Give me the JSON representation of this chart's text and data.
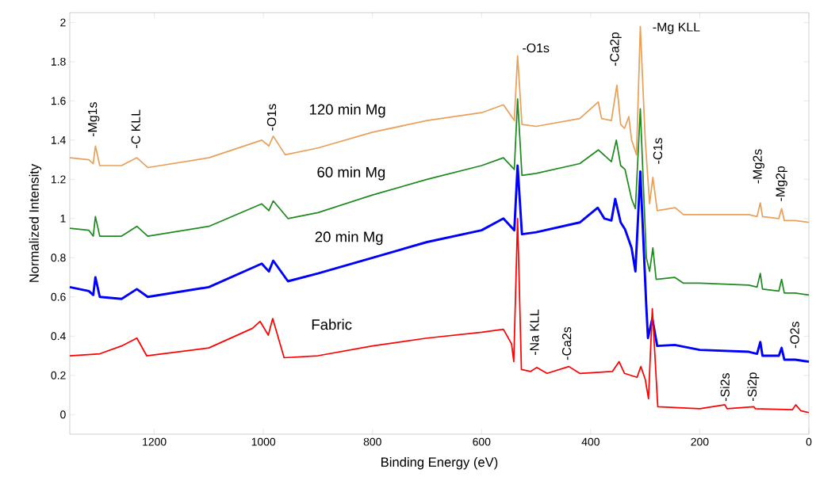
{
  "chart_data": {
    "type": "line",
    "xlabel": "Binding Energy (eV)",
    "ylabel": "Normalized Intensity",
    "xlim": [
      1355,
      0
    ],
    "ylim": [
      -0.1,
      2.05
    ],
    "xticks": [
      1200,
      1000,
      800,
      600,
      400,
      200,
      0
    ],
    "yticks": [
      0,
      0.2,
      0.4,
      0.6,
      0.8,
      1,
      1.2,
      1.4,
      1.6,
      1.8,
      2
    ],
    "grid": false,
    "legend": false,
    "marker": "none",
    "line_style": "solid",
    "series": [
      {
        "name": "120 min Mg",
        "color": "#e8a05a",
        "x": [
          1355,
          1320,
          1312,
          1308,
          1300,
          1260,
          1232,
          1212,
          1100,
          1003,
          990,
          982,
          960,
          900,
          800,
          700,
          600,
          560,
          540,
          534,
          526,
          500,
          420,
          386,
          380,
          362,
          352,
          345,
          338,
          330,
          325,
          316,
          309,
          300,
          292,
          286,
          278,
          245,
          230,
          200,
          110,
          95,
          89,
          85,
          55,
          50,
          45,
          25,
          0
        ],
        "values": [
          1.31,
          1.3,
          1.28,
          1.37,
          1.27,
          1.27,
          1.31,
          1.26,
          1.31,
          1.4,
          1.37,
          1.42,
          1.325,
          1.36,
          1.44,
          1.5,
          1.54,
          1.58,
          1.5,
          1.83,
          1.48,
          1.47,
          1.51,
          1.595,
          1.51,
          1.5,
          1.68,
          1.48,
          1.46,
          1.52,
          1.4,
          1.325,
          1.98,
          1.4,
          1.075,
          1.21,
          1.04,
          1.055,
          1.02,
          1.02,
          1.02,
          1.01,
          1.08,
          1.01,
          1.0,
          1.05,
          0.99,
          0.99,
          0.98
        ]
      },
      {
        "name": "60 min Mg",
        "color": "#1f8a1f",
        "x": [
          1355,
          1320,
          1312,
          1308,
          1300,
          1260,
          1232,
          1212,
          1100,
          1003,
          990,
          982,
          955,
          900,
          800,
          700,
          600,
          560,
          540,
          534,
          526,
          500,
          420,
          386,
          362,
          353,
          345,
          337,
          325,
          318,
          309,
          298,
          292,
          286,
          280,
          246,
          230,
          200,
          110,
          95,
          89,
          85,
          55,
          50,
          45,
          25,
          0
        ],
        "values": [
          0.95,
          0.94,
          0.91,
          1.01,
          0.91,
          0.91,
          0.96,
          0.91,
          0.96,
          1.075,
          1.04,
          1.09,
          1.0,
          1.03,
          1.12,
          1.2,
          1.27,
          1.31,
          1.25,
          1.61,
          1.22,
          1.23,
          1.28,
          1.35,
          1.29,
          1.4,
          1.27,
          1.25,
          1.1,
          1.05,
          1.56,
          0.8,
          0.73,
          0.85,
          0.69,
          0.7,
          0.67,
          0.67,
          0.66,
          0.65,
          0.72,
          0.64,
          0.63,
          0.69,
          0.62,
          0.62,
          0.61
        ]
      },
      {
        "name": "20 min Mg",
        "color": "#0000ff",
        "x": [
          1355,
          1320,
          1312,
          1308,
          1300,
          1260,
          1232,
          1212,
          1100,
          1003,
          990,
          982,
          955,
          900,
          800,
          700,
          600,
          560,
          540,
          534,
          526,
          500,
          420,
          387,
          375,
          362,
          355,
          345,
          337,
          325,
          318,
          309,
          298,
          295,
          287,
          278,
          246,
          200,
          110,
          95,
          89,
          85,
          55,
          50,
          45,
          25,
          0
        ],
        "values": [
          0.65,
          0.63,
          0.61,
          0.7,
          0.6,
          0.59,
          0.64,
          0.6,
          0.65,
          0.77,
          0.73,
          0.785,
          0.68,
          0.72,
          0.8,
          0.88,
          0.94,
          1.0,
          0.94,
          1.27,
          0.92,
          0.93,
          0.98,
          1.055,
          1.0,
          0.99,
          1.1,
          0.98,
          0.945,
          0.85,
          0.73,
          1.24,
          0.55,
          0.39,
          0.49,
          0.35,
          0.355,
          0.33,
          0.32,
          0.31,
          0.37,
          0.3,
          0.3,
          0.34,
          0.28,
          0.28,
          0.27
        ]
      },
      {
        "name": "Fabric",
        "color": "#ff0000",
        "x": [
          1355,
          1300,
          1260,
          1232,
          1214,
          1100,
          1020,
          1006,
          991,
          983,
          962,
          900,
          800,
          700,
          600,
          560,
          545,
          541,
          534,
          527,
          510,
          499,
          480,
          440,
          420,
          360,
          348,
          338,
          315,
          308,
          300,
          294,
          287,
          277,
          200,
          154,
          150,
          101,
          98,
          30,
          24,
          15,
          0
        ],
        "values": [
          0.3,
          0.31,
          0.35,
          0.39,
          0.3,
          0.34,
          0.44,
          0.475,
          0.405,
          0.49,
          0.29,
          0.3,
          0.35,
          0.39,
          0.42,
          0.435,
          0.36,
          0.27,
          1.0,
          0.23,
          0.22,
          0.24,
          0.21,
          0.245,
          0.21,
          0.22,
          0.27,
          0.21,
          0.19,
          0.245,
          0.18,
          0.08,
          0.54,
          0.04,
          0.03,
          0.05,
          0.03,
          0.04,
          0.03,
          0.025,
          0.05,
          0.02,
          0.01
        ]
      }
    ],
    "annotations": [
      "-Mg1s",
      "-C KLL",
      "-O1s",
      "-O1s",
      "-Ca2p",
      "-Mg KLL",
      "-C1s",
      "-Mg2s",
      "-Mg2p",
      "-Na KLL",
      "-Ca2s",
      "-O2s",
      "-Si2s",
      "-Si2p"
    ]
  }
}
